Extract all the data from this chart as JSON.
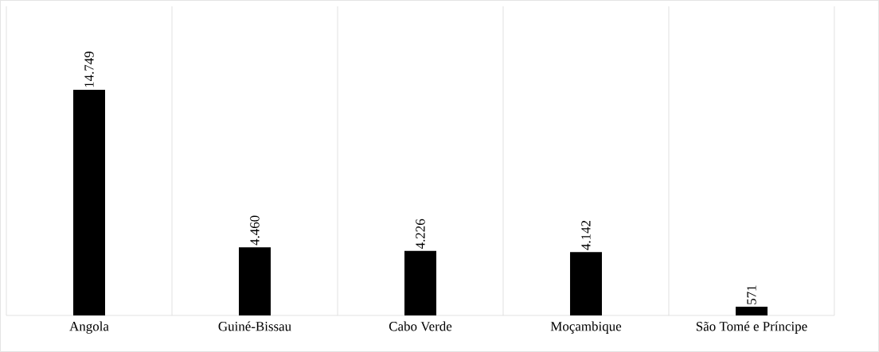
{
  "chart_data": {
    "type": "bar",
    "categories": [
      "Angola",
      "Guiné-Bissau",
      "Cabo Verde",
      "Moçambique",
      "São Tomé e Príncipe"
    ],
    "values": [
      14749,
      4460,
      4226,
      4142,
      571
    ],
    "value_labels": [
      "14.749",
      "4.460",
      "4.226",
      "4.142",
      "571"
    ],
    "color": "#000000",
    "grid": "x"
  }
}
